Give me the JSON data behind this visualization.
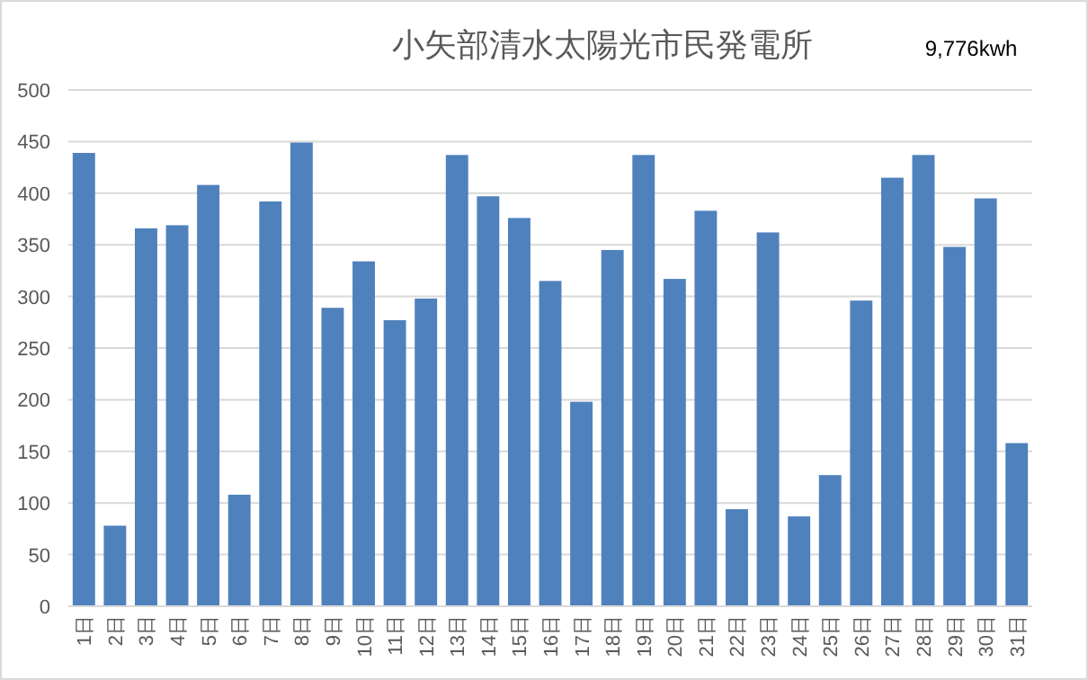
{
  "chart_data": {
    "type": "bar",
    "title": "小矢部清水太陽光市民発電所",
    "annotations": [
      "9,776kwh"
    ],
    "categories": [
      "1日",
      "2日",
      "3日",
      "4日",
      "5日",
      "6日",
      "7日",
      "8日",
      "9日",
      "10日",
      "11日",
      "12日",
      "13日",
      "14日",
      "15日",
      "16日",
      "17日",
      "18日",
      "19日",
      "20日",
      "21日",
      "22日",
      "23日",
      "24日",
      "25日",
      "26日",
      "27日",
      "28日",
      "29日",
      "30日",
      "31日"
    ],
    "values": [
      439,
      78,
      366,
      369,
      408,
      108,
      392,
      449,
      289,
      334,
      277,
      298,
      437,
      397,
      376,
      315,
      198,
      345,
      437,
      317,
      383,
      94,
      362,
      87,
      127,
      296,
      415,
      437,
      348,
      395,
      158
    ],
    "color": "#4f81bd",
    "ylim": [
      0,
      500
    ],
    "yticks": [
      0,
      50,
      100,
      150,
      200,
      250,
      300,
      350,
      400,
      450,
      500
    ],
    "grid": "y"
  }
}
